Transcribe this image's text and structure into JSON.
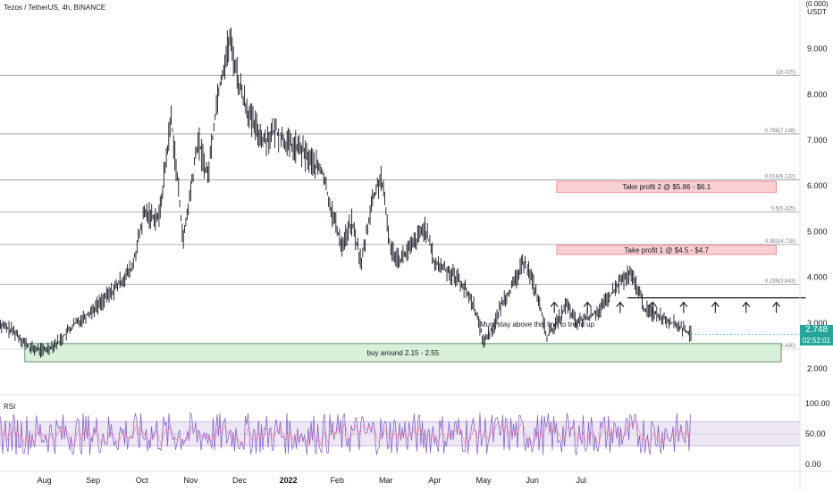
{
  "header": {
    "title": "Tezos / TetherUS, 4h, BINANCE"
  },
  "axis": {
    "currency_line1": "(0.000)",
    "currency_line2": "USDT"
  },
  "price_tag": {
    "price": "2.748",
    "countdown": "02:52:01"
  },
  "rsi": {
    "label": "RSI",
    "ticks": [
      "100.00",
      "50.00",
      "0.00"
    ]
  },
  "colors": {
    "up": "#26a69a",
    "candle": "#131722",
    "fib": "#9598a1",
    "tp_fill": "#f9cfd2",
    "tp_border": "#f07b82",
    "buy_fill": "#d8efd9",
    "buy_border": "#4a7d52",
    "rsi": "#7e57c2",
    "rsi_band": "#ede7f6"
  },
  "chart_data": {
    "type": "candlestick",
    "title": "Tezos / TetherUS, 4h, BINANCE",
    "x_ticks": [
      "Aug",
      "Sep",
      "Oct",
      "Nov",
      "Dec",
      "2022",
      "Feb",
      "Mar",
      "Apr",
      "May",
      "Jun",
      "Jul"
    ],
    "y_ticks": [
      "9.000",
      "8.000",
      "7.000",
      "6.000",
      "5.000",
      "4.000",
      "3.000",
      "2.000"
    ],
    "ylim": [
      1.8,
      9.8
    ],
    "price_path": [
      [
        0,
        3.0
      ],
      [
        0.4,
        2.8
      ],
      [
        0.7,
        2.45
      ],
      [
        1.0,
        2.4
      ],
      [
        1.3,
        2.6
      ],
      [
        1.6,
        2.95
      ],
      [
        2.0,
        3.3
      ],
      [
        2.4,
        3.7
      ],
      [
        2.8,
        4.2
      ],
      [
        3.05,
        5.4
      ],
      [
        3.35,
        5.3
      ],
      [
        3.6,
        7.5
      ],
      [
        3.85,
        4.8
      ],
      [
        4.15,
        7.0
      ],
      [
        4.35,
        6.2
      ],
      [
        4.55,
        8.0
      ],
      [
        4.8,
        9.2
      ],
      [
        5.0,
        8.2
      ],
      [
        5.25,
        7.4
      ],
      [
        5.5,
        7.0
      ],
      [
        5.75,
        7.2
      ],
      [
        6.0,
        6.9
      ],
      [
        6.25,
        6.8
      ],
      [
        6.5,
        6.5
      ],
      [
        6.7,
        6.3
      ],
      [
        6.9,
        5.4
      ],
      [
        7.1,
        4.7
      ],
      [
        7.3,
        5.2
      ],
      [
        7.5,
        4.3
      ],
      [
        7.7,
        5.6
      ],
      [
        7.9,
        6.2
      ],
      [
        8.1,
        4.6
      ],
      [
        8.3,
        4.4
      ],
      [
        8.55,
        4.7
      ],
      [
        8.8,
        5.1
      ],
      [
        9.0,
        4.3
      ],
      [
        9.2,
        4.2
      ],
      [
        9.5,
        3.95
      ],
      [
        9.8,
        3.4
      ],
      [
        10.0,
        2.6
      ],
      [
        10.2,
        2.9
      ],
      [
        10.4,
        3.5
      ],
      [
        10.6,
        3.8
      ],
      [
        10.85,
        4.4
      ],
      [
        11.1,
        3.6
      ],
      [
        11.3,
        2.7
      ],
      [
        11.5,
        3.0
      ],
      [
        11.7,
        3.4
      ],
      [
        11.9,
        3.0
      ],
      [
        12.1,
        3.1
      ],
      [
        12.4,
        3.3
      ],
      [
        12.6,
        3.6
      ],
      [
        12.8,
        3.9
      ],
      [
        13.0,
        4.05
      ],
      [
        13.15,
        3.8
      ],
      [
        13.3,
        3.3
      ],
      [
        13.55,
        3.2
      ],
      [
        13.8,
        3.05
      ],
      [
        14.05,
        2.9
      ],
      [
        14.25,
        2.75
      ]
    ],
    "fib_levels": [
      {
        "ratio": "1",
        "price": 8.42,
        "label": "1(8.420)"
      },
      {
        "ratio": "0.786",
        "price": 7.138,
        "label": "0.786(7.138)"
      },
      {
        "ratio": "0.618",
        "price": 6.132,
        "label": "0.618(6.132)"
      },
      {
        "ratio": "0.5",
        "price": 5.425,
        "label": "0.5(5.425)"
      },
      {
        "ratio": "0.382",
        "price": 4.718,
        "label": "0.382(4.718)"
      },
      {
        "ratio": "0.236",
        "price": 3.843,
        "label": "0.236(3.843)"
      },
      {
        "ratio": "0",
        "price": 2.43,
        "label": "0(2.430)"
      }
    ],
    "zones": [
      {
        "label": "Take profit 2 @ $5.86 - $6.1",
        "low": 5.86,
        "high": 6.1,
        "kind": "take-profit",
        "x_from": 11.5,
        "x_to": 16.0
      },
      {
        "label": "Take profit 1 @ $4.5 - $4.7",
        "low": 4.5,
        "high": 4.7,
        "kind": "take-profit",
        "x_from": 11.5,
        "x_to": 16.0
      },
      {
        "label": "buy around 2.15 - 2.55",
        "low": 2.15,
        "high": 2.55,
        "kind": "buy",
        "x_from": 0.6,
        "x_to": 16.1
      }
    ],
    "support_line": {
      "price": 3.55,
      "label": "Must stay above this line to trend up",
      "x_from": 12.95,
      "x_to": 16.6
    },
    "arrow_markers": [
      11.45,
      12.13,
      12.8,
      13.47,
      14.1,
      14.75,
      15.38,
      16.0
    ],
    "last_price": 2.748,
    "countdown": "02:52:01",
    "rsi": {
      "name": "RSI",
      "ylim": [
        0,
        100
      ],
      "band": [
        30,
        70
      ],
      "midline": 50
    }
  }
}
